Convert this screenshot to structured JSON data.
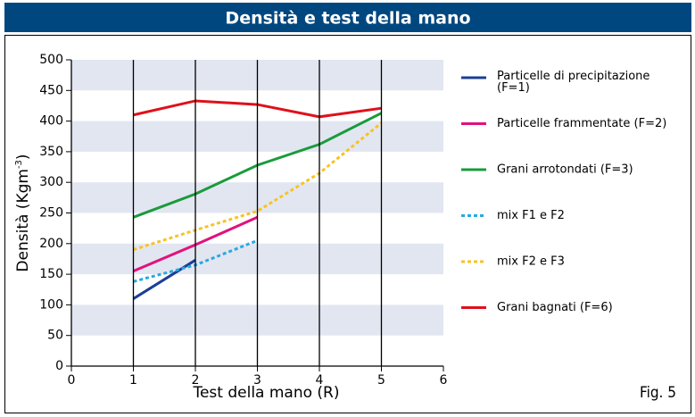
{
  "chart_data": {
    "type": "line",
    "title": "Densità e test della mano",
    "xlabel": "Test della mano (R)",
    "ylabel": [
      "Densità (Kgm",
      "-3",
      ")"
    ],
    "figure_label": "Fig. 5",
    "xlim": [
      0,
      6
    ],
    "xticks": [
      0,
      1,
      2,
      3,
      4,
      5,
      6
    ],
    "ylim": [
      0,
      500
    ],
    "yticks": [
      0,
      50,
      100,
      150,
      200,
      250,
      300,
      350,
      400,
      450,
      500
    ],
    "grid": true,
    "legend": "right",
    "series": [
      {
        "name": "Particelle di precipitazione (F=1)",
        "color": "#1c3f94",
        "style": "solid",
        "x": [
          1,
          2
        ],
        "values": [
          110,
          173
        ]
      },
      {
        "name": "Particelle frammentate (F=2)",
        "color": "#e2117d",
        "style": "solid",
        "x": [
          1,
          2,
          3
        ],
        "values": [
          155,
          198,
          243
        ]
      },
      {
        "name": "Grani arrotondati (F=3)",
        "color": "#1a9b3c",
        "style": "solid",
        "x": [
          1,
          2,
          3,
          4,
          5
        ],
        "values": [
          243,
          281,
          328,
          362,
          413
        ]
      },
      {
        "name": "mix F1 e F2",
        "color": "#2aa9e0",
        "style": "dotted",
        "x": [
          1,
          2,
          3
        ],
        "values": [
          138,
          165,
          205
        ]
      },
      {
        "name": "mix F2 e F3",
        "color": "#f7c325",
        "style": "dotted",
        "x": [
          1,
          2,
          3,
          4,
          5
        ],
        "values": [
          190,
          222,
          253,
          315,
          397
        ]
      },
      {
        "name": "Grani bagnati (F=6)",
        "color": "#e0101b",
        "style": "solid",
        "x": [
          1,
          2,
          3,
          4,
          5
        ],
        "values": [
          410,
          433,
          427,
          407,
          421
        ]
      }
    ]
  }
}
